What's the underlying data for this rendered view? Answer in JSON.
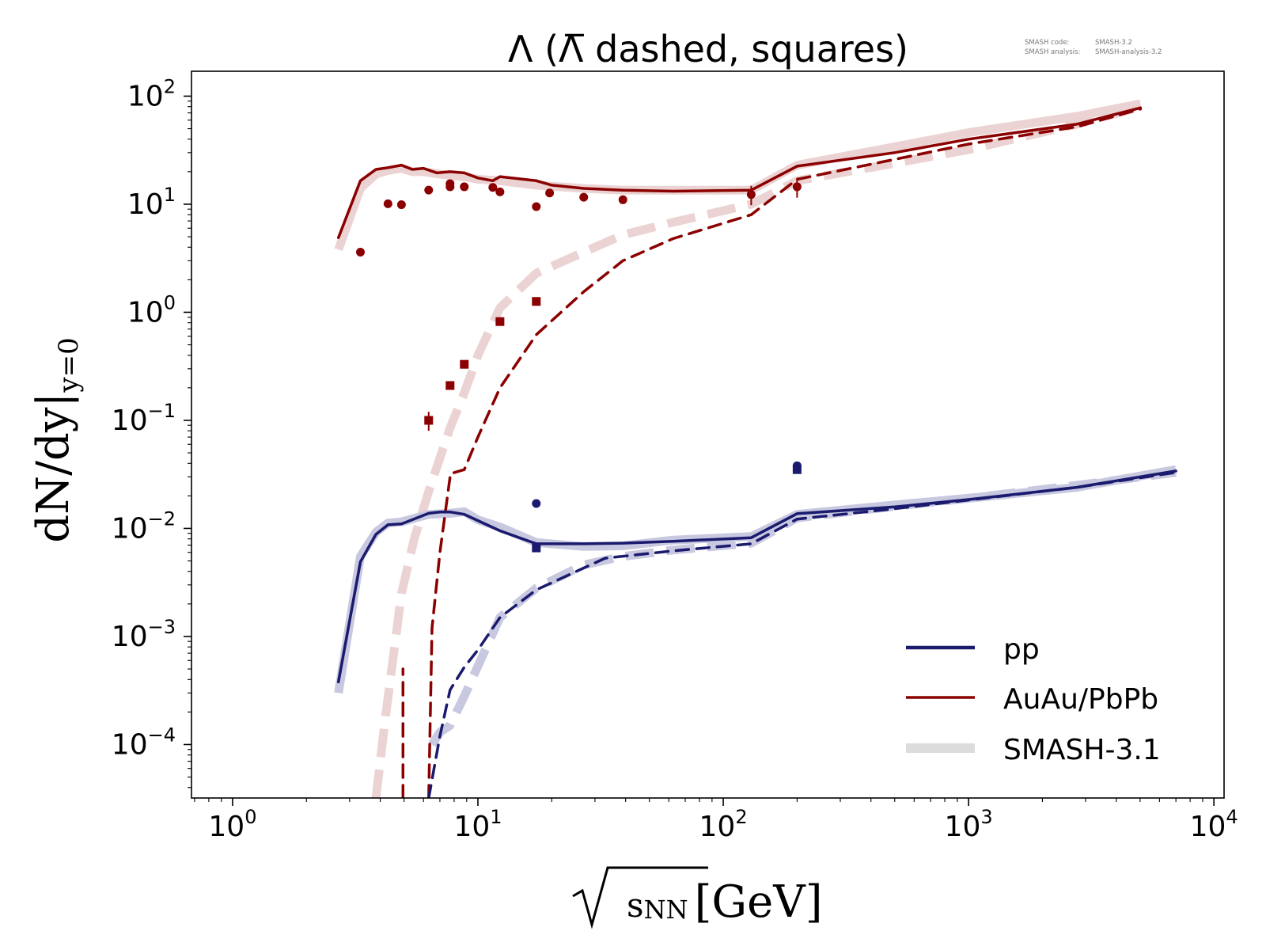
{
  "chart_data": {
    "type": "line",
    "title": "Λ (Λ̅ dashed, squares)",
    "version_info": {
      "line1_label": "SMASH code:",
      "line1_value": "SMASH-3.2",
      "line2_label": "SMASH analysis:",
      "line2_value": "SMASH-analysis-3.2"
    },
    "xlabel": "√sNN [GeV]",
    "xlabel_parts": {
      "var": "s",
      "sub": "NN",
      "unit": "[GeV]"
    },
    "ylabel": "dN/dy|y=0",
    "ylabel_parts": {
      "main": "dN/dy|",
      "sub": "y=0"
    },
    "xscale": "log",
    "yscale": "log",
    "xlim": [
      0.68,
      11000
    ],
    "ylim": [
      3.2e-05,
      170
    ],
    "xticks": [
      {
        "value": 1,
        "label_base": "10",
        "label_exp": "0"
      },
      {
        "value": 10,
        "label_base": "10",
        "label_exp": "1"
      },
      {
        "value": 100,
        "label_base": "10",
        "label_exp": "2"
      },
      {
        "value": 1000,
        "label_base": "10",
        "label_exp": "3"
      },
      {
        "value": 10000,
        "label_base": "10",
        "label_exp": "4"
      }
    ],
    "yticks": [
      {
        "value": 0.0001,
        "label_base": "10",
        "label_exp": "−4"
      },
      {
        "value": 0.001,
        "label_base": "10",
        "label_exp": "−3"
      },
      {
        "value": 0.01,
        "label_base": "10",
        "label_exp": "−2"
      },
      {
        "value": 0.1,
        "label_base": "10",
        "label_exp": "−1"
      },
      {
        "value": 1,
        "label_base": "10",
        "label_exp": "0"
      },
      {
        "value": 10,
        "label_base": "10",
        "label_exp": "1"
      },
      {
        "value": 100,
        "label_base": "10",
        "label_exp": "2"
      }
    ],
    "grid": false,
    "legend": {
      "position": "lower-right",
      "entries": [
        {
          "label": "pp",
          "color": "#1a1a6e",
          "style": "solid"
        },
        {
          "label": "AuAu/PbPb",
          "color": "#8b0000",
          "style": "solid"
        },
        {
          "label": "SMASH-3.1",
          "color": "#dcdcdc",
          "style": "solid-thick"
        }
      ]
    },
    "colors": {
      "pp": "#1a1a6e",
      "pp_band": "#c8c8e0",
      "auau": "#8b0000",
      "auau_band": "#ecd3d3"
    },
    "series": [
      {
        "id": "auau-lambda-smash31",
        "color": "#ecd3d3",
        "style": "band-solid",
        "x": [
          2.7,
          3.32,
          3.84,
          4.3,
          4.88,
          5.4,
          6.0,
          7.0,
          7.7,
          8.8,
          10.0,
          12.3,
          17.3,
          27,
          39,
          62.4,
          130,
          200,
          500,
          1000,
          2760,
          5020
        ],
        "y": [
          3.8,
          14,
          19,
          20.5,
          21.5,
          20,
          20,
          19,
          18.5,
          18,
          17,
          16.5,
          15,
          14,
          13.5,
          13.5,
          13.5,
          23,
          34,
          46,
          65,
          85
        ]
      },
      {
        "id": "auau-antilambda-smash31",
        "color": "#ecd3d3",
        "style": "band-dashed",
        "x": [
          3.84,
          4.2,
          4.88,
          5.5,
          6.3,
          7.0,
          7.7,
          8.8,
          10.0,
          12.3,
          17.3,
          27,
          39,
          62.4,
          130,
          200,
          500,
          1000,
          2760,
          5020
        ],
        "y": [
          3.2e-05,
          0.00018,
          0.0025,
          0.008,
          0.022,
          0.045,
          0.085,
          0.18,
          0.4,
          1.1,
          2.3,
          3.6,
          5.2,
          6.8,
          10,
          16.5,
          24,
          32,
          55,
          80
        ]
      },
      {
        "id": "auau-lambda",
        "color": "#8b0000",
        "style": "solid",
        "x": [
          2.7,
          3.32,
          3.84,
          4.3,
          4.88,
          5.4,
          6.0,
          6.8,
          7.7,
          8.8,
          10.0,
          11.5,
          12.3,
          17.3,
          20,
          27,
          39,
          62.4,
          130,
          200,
          500,
          1000,
          2760,
          5020
        ],
        "y": [
          4.9,
          16.5,
          21,
          21.8,
          23,
          21,
          21.5,
          19.5,
          20,
          19.5,
          17.5,
          16.5,
          18,
          16.5,
          15,
          14,
          13.5,
          13.2,
          13.5,
          22.5,
          30,
          40,
          55,
          78
        ]
      },
      {
        "id": "auau-antilambda",
        "color": "#8b0000",
        "style": "dashed",
        "x": [
          6.3,
          6.5,
          7.0,
          7.7,
          7.7,
          8.8,
          10.0,
          12.3,
          17.3,
          27,
          39,
          62.4,
          130,
          200,
          500,
          1000,
          2760,
          5020
        ],
        "y": [
          3.2e-05,
          0.0012,
          0.006,
          0.03,
          0.032,
          0.035,
          0.07,
          0.2,
          0.62,
          1.55,
          3.0,
          4.8,
          8,
          17,
          26,
          36,
          52,
          76
        ]
      },
      {
        "id": "auau-antilambda-lowstub",
        "color": "#8b0000",
        "style": "dashed",
        "x": [
          4.95,
          4.95
        ],
        "y": [
          3.2e-05,
          0.0005
        ]
      },
      {
        "id": "pp-lambda-smash31",
        "color": "#c8c8e0",
        "style": "band-solid",
        "x": [
          2.7,
          3.32,
          3.84,
          4.3,
          4.88,
          6.3,
          7.7,
          8.8,
          10.0,
          12.3,
          17.3,
          27,
          39,
          62.4,
          130,
          200,
          500,
          1000,
          2760,
          7000
        ],
        "y": [
          0.0003,
          0.0055,
          0.0092,
          0.0112,
          0.0115,
          0.0135,
          0.0138,
          0.0143,
          0.012,
          0.0103,
          0.0074,
          0.0068,
          0.0069,
          0.0078,
          0.0084,
          0.0135,
          0.0165,
          0.019,
          0.024,
          0.035
        ]
      },
      {
        "id": "pp-antilambda-smash31",
        "color": "#c8c8e0",
        "style": "band-dashed",
        "x": [
          6.5,
          7.0,
          7.7,
          8.8,
          12.3,
          17.3,
          27,
          39,
          62.4,
          130,
          200,
          500,
          1000,
          2760,
          7000
        ],
        "y": [
          0.0001,
          0.00013,
          0.00015,
          0.00028,
          0.0015,
          0.0028,
          0.0046,
          0.0055,
          0.0063,
          0.0073,
          0.0125,
          0.016,
          0.019,
          0.025,
          0.033
        ]
      },
      {
        "id": "pp-lambda",
        "color": "#1a1a6e",
        "style": "solid",
        "x": [
          2.7,
          3.32,
          3.84,
          4.3,
          4.88,
          6.3,
          7.0,
          7.7,
          8.8,
          10.0,
          12.3,
          17.3,
          27,
          39,
          62.4,
          130,
          200,
          500,
          1000,
          2760,
          7000
        ],
        "y": [
          0.00038,
          0.0049,
          0.0088,
          0.0108,
          0.011,
          0.0138,
          0.0142,
          0.0142,
          0.0135,
          0.0118,
          0.0095,
          0.0072,
          0.0072,
          0.0073,
          0.0076,
          0.0082,
          0.0137,
          0.0158,
          0.0185,
          0.024,
          0.034
        ]
      },
      {
        "id": "pp-antilambda",
        "color": "#1a1a6e",
        "style": "dashed",
        "x": [
          6.3,
          7.0,
          7.7,
          8.8,
          10.0,
          12.3,
          17.3,
          27,
          33,
          62.4,
          130,
          200,
          500,
          1000,
          2760,
          7000
        ],
        "y": [
          3.2e-05,
          0.00012,
          0.00032,
          0.00052,
          0.00075,
          0.0015,
          0.0027,
          0.0043,
          0.0053,
          0.0062,
          0.0072,
          0.0122,
          0.0152,
          0.0183,
          0.024,
          0.033
        ]
      }
    ],
    "points": [
      {
        "id": "auau-lambda-data",
        "color": "#8b0000",
        "marker": "circle",
        "x": [
          3.32,
          4.3,
          4.88,
          6.3,
          7.7,
          7.7,
          8.8,
          11.5,
          12.3,
          17.3,
          19.6,
          27,
          39,
          130,
          200
        ],
        "y": [
          3.6,
          10.1,
          9.9,
          13.5,
          14.5,
          15.5,
          14.5,
          14.3,
          13,
          9.5,
          12.7,
          11.6,
          11,
          12.3,
          14.5
        ],
        "err": [
          0,
          0,
          0,
          0,
          0,
          0,
          0,
          0,
          0,
          0,
          0,
          0,
          0,
          2.5,
          3
        ]
      },
      {
        "id": "auau-antilambda-data",
        "color": "#8b0000",
        "marker": "square",
        "x": [
          6.3,
          7.7,
          8.8,
          12.3,
          17.3
        ],
        "y": [
          0.1,
          0.21,
          0.33,
          0.82,
          1.26
        ],
        "err": [
          0.02,
          0,
          0,
          0,
          0
        ]
      },
      {
        "id": "pp-lambda-data",
        "color": "#1a1a6e",
        "marker": "circle",
        "x": [
          17.3,
          200
        ],
        "y": [
          0.017,
          0.038
        ],
        "err": [
          0,
          0
        ]
      },
      {
        "id": "pp-antilambda-data",
        "color": "#1a1a6e",
        "marker": "square",
        "x": [
          17.3,
          200
        ],
        "y": [
          0.0066,
          0.035
        ],
        "err": [
          0,
          0
        ]
      }
    ]
  }
}
